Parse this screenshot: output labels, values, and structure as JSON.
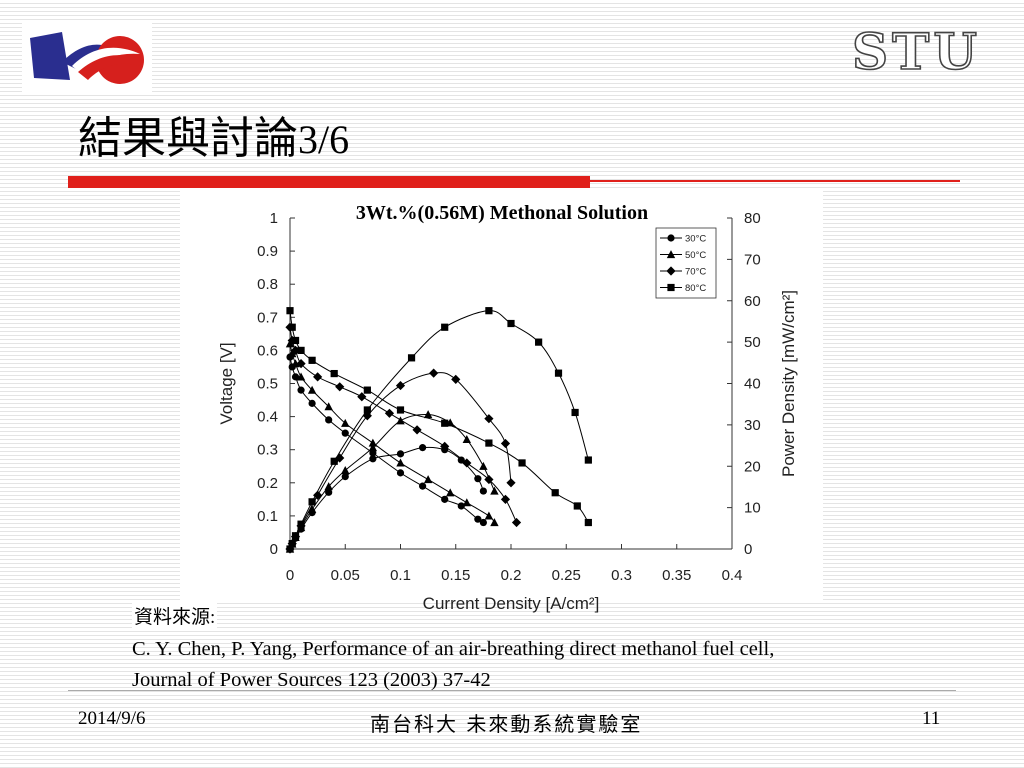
{
  "slide": {
    "logo_right_text": "STU",
    "title_cjk": "結果與討論",
    "title_num": "3/6",
    "source_label": "資料來源:",
    "source_line1": "C. Y. Chen, P. Yang, Performance of an air-breathing direct methanol fuel cell,",
    "source_line2": "Journal of Power Sources 123 (2003) 37-42",
    "footer_date": "2014/9/6",
    "footer_lab": "南台科大  未來動系統實驗室",
    "footer_page": "11",
    "accent_color": "#e0201b"
  },
  "chart_data": {
    "type": "line",
    "title": "3Wt.%(0.56M) Methonal Solution",
    "xlabel": "Current Density [A/cm²]",
    "ylabel": "Voltage [V]",
    "y2label": "Power Density [mW/cm²]",
    "xlim": [
      0,
      0.4
    ],
    "ylim": [
      0,
      1
    ],
    "y2lim": [
      0,
      80
    ],
    "xticks": [
      "0",
      "0.05",
      "0.1",
      "0.15",
      "0.2",
      "0.25",
      "0.3",
      "0.35",
      "0.4"
    ],
    "yticks": [
      "0",
      "0.1",
      "0.2",
      "0.3",
      "0.4",
      "0.5",
      "0.6",
      "0.7",
      "0.8",
      "0.9",
      "1"
    ],
    "y2ticks": [
      "0",
      "10",
      "20",
      "30",
      "40",
      "50",
      "60",
      "70",
      "80"
    ],
    "legend_position": "top-right",
    "series": [
      {
        "name": "30°C",
        "marker": "circle",
        "voltage": {
          "x": [
            0,
            0.002,
            0.005,
            0.01,
            0.02,
            0.035,
            0.05,
            0.075,
            0.1,
            0.12,
            0.14,
            0.155,
            0.17,
            0.175
          ],
          "y": [
            0.58,
            0.55,
            0.52,
            0.48,
            0.44,
            0.39,
            0.35,
            0.29,
            0.23,
            0.19,
            0.15,
            0.13,
            0.09,
            0.08
          ]
        },
        "power": {
          "x": [
            0,
            0.002,
            0.005,
            0.01,
            0.02,
            0.035,
            0.05,
            0.075,
            0.1,
            0.12,
            0.14,
            0.155,
            0.17,
            0.175
          ],
          "y": [
            0,
            1.1,
            2.6,
            4.8,
            8.8,
            13.7,
            17.5,
            21.8,
            23.0,
            24.5,
            24.0,
            21.5,
            17.0,
            14.0
          ]
        }
      },
      {
        "name": "50°C",
        "marker": "triangle",
        "voltage": {
          "x": [
            0,
            0.002,
            0.005,
            0.01,
            0.02,
            0.035,
            0.05,
            0.075,
            0.1,
            0.125,
            0.145,
            0.16,
            0.18,
            0.185
          ],
          "y": [
            0.62,
            0.59,
            0.56,
            0.52,
            0.48,
            0.43,
            0.38,
            0.32,
            0.26,
            0.21,
            0.17,
            0.14,
            0.1,
            0.08
          ]
        },
        "power": {
          "x": [
            0,
            0.002,
            0.005,
            0.01,
            0.02,
            0.035,
            0.05,
            0.075,
            0.1,
            0.125,
            0.145,
            0.16,
            0.175,
            0.185
          ],
          "y": [
            0,
            1.2,
            2.8,
            5.2,
            9.6,
            15.1,
            19.0,
            24.5,
            31.0,
            32.5,
            30.5,
            26.5,
            20.0,
            14.0
          ]
        }
      },
      {
        "name": "70°C",
        "marker": "diamond",
        "voltage": {
          "x": [
            0,
            0.002,
            0.005,
            0.01,
            0.025,
            0.045,
            0.065,
            0.09,
            0.115,
            0.14,
            0.16,
            0.18,
            0.195,
            0.205
          ],
          "y": [
            0.67,
            0.63,
            0.6,
            0.56,
            0.52,
            0.49,
            0.46,
            0.41,
            0.36,
            0.31,
            0.26,
            0.21,
            0.15,
            0.08
          ]
        },
        "power": {
          "x": [
            0,
            0.002,
            0.005,
            0.01,
            0.025,
            0.045,
            0.07,
            0.1,
            0.13,
            0.15,
            0.18,
            0.195,
            0.2
          ],
          "y": [
            0,
            1.3,
            3.0,
            5.6,
            13.0,
            22.0,
            32.2,
            39.5,
            42.5,
            41.0,
            31.5,
            25.5,
            16.0
          ]
        }
      },
      {
        "name": "80°C",
        "marker": "square",
        "voltage": {
          "x": [
            0,
            0.002,
            0.005,
            0.01,
            0.02,
            0.04,
            0.07,
            0.1,
            0.14,
            0.18,
            0.21,
            0.24,
            0.26,
            0.27
          ],
          "y": [
            0.72,
            0.67,
            0.63,
            0.6,
            0.57,
            0.53,
            0.48,
            0.42,
            0.38,
            0.32,
            0.26,
            0.17,
            0.13,
            0.08
          ]
        },
        "power": {
          "x": [
            0,
            0.002,
            0.005,
            0.01,
            0.02,
            0.04,
            0.07,
            0.11,
            0.14,
            0.18,
            0.2,
            0.225,
            0.243,
            0.258,
            0.27
          ],
          "y": [
            0,
            1.3,
            3.2,
            6.0,
            11.4,
            21.2,
            33.6,
            46.2,
            53.6,
            57.6,
            54.5,
            50.0,
            42.5,
            33.0,
            21.5
          ]
        }
      }
    ]
  }
}
